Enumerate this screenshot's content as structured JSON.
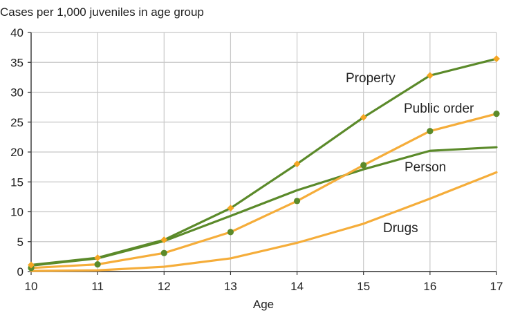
{
  "chart_data": {
    "type": "line",
    "title": "",
    "ylabel": "Cases per 1,000 juveniles in age group",
    "xlabel": "Age",
    "x": [
      10,
      11,
      12,
      13,
      14,
      15,
      16,
      17
    ],
    "xlim": [
      10,
      17
    ],
    "ylim": [
      0,
      40
    ],
    "yticks": [
      0,
      5,
      10,
      15,
      20,
      25,
      30,
      35,
      40
    ],
    "grid": true,
    "legend": "inline labels",
    "series": [
      {
        "name": "Property",
        "color": "#5b8a2a",
        "marker": "diamond",
        "marker_color": "#f5a623",
        "values": [
          1.1,
          2.3,
          5.3,
          10.6,
          18.0,
          25.8,
          32.8,
          35.6
        ]
      },
      {
        "name": "Public order",
        "color": "#f5ad3a",
        "marker": "circle",
        "marker_color": "#5b8a2a",
        "values": [
          0.6,
          1.2,
          3.1,
          6.6,
          11.8,
          17.8,
          23.5,
          26.4
        ]
      },
      {
        "name": "Person",
        "color": "#5b8a2a",
        "marker": "none",
        "values": [
          1.0,
          2.2,
          5.1,
          9.3,
          13.6,
          17.1,
          20.2,
          20.8
        ]
      },
      {
        "name": "Drugs",
        "color": "#f5ad3a",
        "marker": "none",
        "values": [
          0.1,
          0.2,
          0.8,
          2.2,
          4.8,
          8.0,
          12.2,
          16.6
        ]
      }
    ]
  }
}
